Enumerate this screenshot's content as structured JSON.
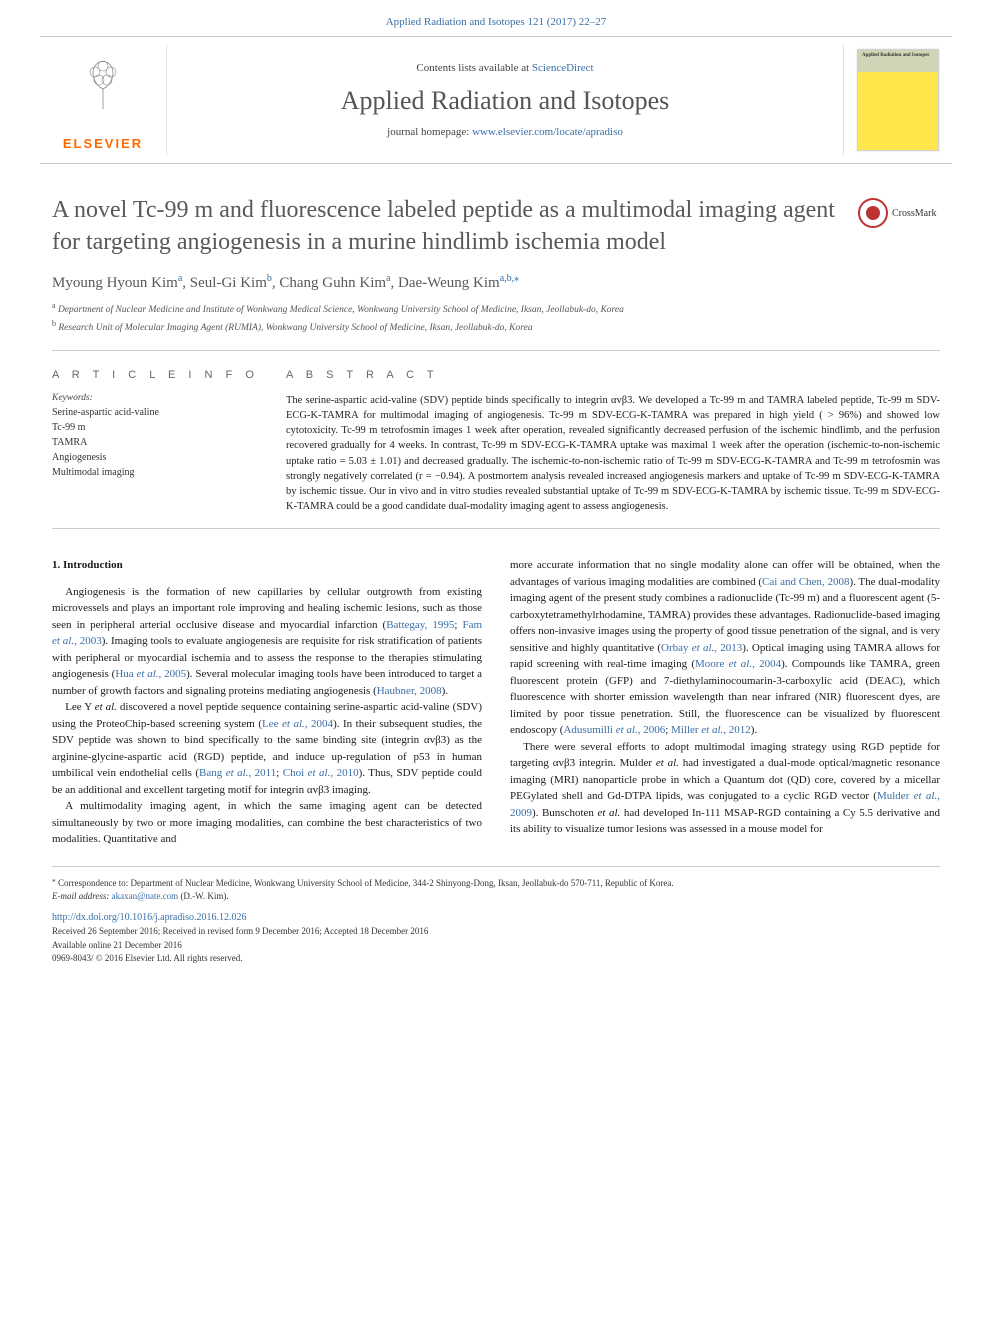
{
  "header": {
    "citation": "Applied Radiation and Isotopes 121 (2017) 22–27",
    "contents_prefix": "Contents lists available at ",
    "contents_link": "ScienceDirect",
    "journal_name": "Applied Radiation and Isotopes",
    "homepage_prefix": "journal homepage: ",
    "homepage_link": "www.elsevier.com/locate/apradiso",
    "publisher": "ELSEVIER",
    "cover_label": "Applied Radiation and Isotopes"
  },
  "crossmark": {
    "label": "CrossMark"
  },
  "article": {
    "title": "A novel Tc-99 m and fluorescence labeled peptide as a multimodal imaging agent for targeting angiogenesis in a murine hindlimb ischemia model",
    "authors_html": "Myoung Hyoun Kim<sup>a</sup>, Seul-Gi Kim<sup>b</sup>, Chang Guhn Kim<sup>a</sup>, Dae-Weung Kim<sup>a,b,</sup>",
    "corr_marker": "⁎",
    "affiliations": {
      "a": "Department of Nuclear Medicine and Institute of Wonkwang Medical Science, Wonkwang University School of Medicine, Iksan, Jeollabuk-do, Korea",
      "b": "Research Unit of Molecular Imaging Agent (RUMIA), Wonkwang University School of Medicine, Iksan, Jeollabuk-do, Korea"
    }
  },
  "info": {
    "section_label": "A R T I C L E  I N F O",
    "keywords_label": "Keywords:",
    "keywords": [
      "Serine-aspartic acid-valine",
      "Tc-99 m",
      "TAMRA",
      "Angiogenesis",
      "Multimodal imaging"
    ]
  },
  "abstract": {
    "section_label": "A B S T R A C T",
    "text": "The serine-aspartic acid-valine (SDV) peptide binds specifically to integrin αvβ3. We developed a Tc-99 m and TAMRA labeled peptide, Tc-99 m SDV-ECG-K-TAMRA for multimodal imaging of angiogenesis. Tc-99 m SDV-ECG-K-TAMRA was prepared in high yield ( > 96%) and showed low cytotoxicity. Tc-99 m tetrofosmin images 1 week after operation, revealed significantly decreased perfusion of the ischemic hindlimb, and the perfusion recovered gradually for 4 weeks. In contrast, Tc-99 m SDV-ECG-K-TAMRA uptake was maximal 1 week after the operation (ischemic-to-non-ischemic uptake ratio = 5.03 ± 1.01) and decreased gradually. The ischemic-to-non-ischemic ratio of Tc-99 m SDV-ECG-K-TAMRA and Tc-99 m tetrofosmin was strongly negatively correlated (r = −0.94). A postmortem analysis revealed increased angiogenesis markers and uptake of Tc-99 m SDV-ECG-K-TAMRA by ischemic tissue. Our in vivo and in vitro studies revealed substantial uptake of Tc-99 m SDV-ECG-K-TAMRA by ischemic tissue. Tc-99 m SDV-ECG-K-TAMRA could be a good candidate dual-modality imaging agent to assess angiogenesis."
  },
  "body": {
    "heading": "1. Introduction",
    "left": [
      "Angiogenesis is the formation of new capillaries by cellular outgrowth from existing microvessels and plays an important role improving and healing ischemic lesions, such as those seen in peripheral arterial occlusive disease and myocardial infarction (Battegay, 1995; Fam et al., 2003). Imaging tools to evaluate angiogenesis are requisite for risk stratification of patients with peripheral or myocardial ischemia and to assess the response to the therapies stimulating angiogenesis (Hua et al., 2005). Several molecular imaging tools have been introduced to target a number of growth factors and signaling proteins mediating angiogenesis (Haubner, 2008).",
      "Lee Y et al. discovered a novel peptide sequence containing serine-aspartic acid-valine (SDV) using the ProteoChip-based screening system (Lee et al., 2004). In their subsequent studies, the SDV peptide was shown to bind specifically to the same binding site (integrin αvβ3) as the arginine-glycine-aspartic acid (RGD) peptide, and induce up-regulation of p53 in human umbilical vein endothelial cells (Bang et al., 2011; Choi et al., 2010). Thus, SDV peptide could be an additional and excellent targeting motif for integrin αvβ3 imaging.",
      "A multimodality imaging agent, in which the same imaging agent can be detected simultaneously by two or more imaging modalities, can combine the best characteristics of two modalities. Quantitative and"
    ],
    "right": [
      "more accurate information that no single modality alone can offer will be obtained, when the advantages of various imaging modalities are combined (Cai and Chen, 2008). The dual-modality imaging agent of the present study combines a radionuclide (Tc-99 m) and a fluorescent agent (5-carboxytetramethylrhodamine, TAMRA) provides these advantages. Radionuclide-based imaging offers non-invasive images using the property of good tissue penetration of the signal, and is very sensitive and highly quantitative (Orbay et al., 2013). Optical imaging using TAMRA allows for rapid screening with real-time imaging (Moore et al., 2004). Compounds like TAMRA, green fluorescent protein (GFP) and 7-diethylaminocoumarin-3-carboxylic acid (DEAC), which fluorescence with shorter emission wavelength than near infrared (NIR) fluorescent dyes, are limited by poor tissue penetration. Still, the fluorescence can be visualized by fluorescent endoscopy (Adusumilli et al., 2006; Miller et al., 2012).",
      "There were several efforts to adopt multimodal imaging strategy using RGD peptide for targeting αvβ3 integrin. Mulder et al. had investigated a dual-mode optical/magnetic resonance imaging (MRI) nanoparticle probe in which a Quantum dot (QD) core, covered by a micellar PEGylated shell and Gd-DTPA lipids, was conjugated to a cyclic RGD vector (Mulder et al., 2009). Bunschoten et al. had developed In-111 MSAP-RGD containing a Cy 5.5 derivative and its ability to visualize tumor lesions was assessed in a mouse model for"
    ]
  },
  "footer": {
    "corr": "Correspondence to: Department of Nuclear Medicine, Wonkwang University School of Medicine, 344-2 Shinyong-Dong, Iksan, Jeollabuk-do 570-711, Republic of Korea.",
    "email_label": "E-mail address:",
    "email": "akaxan@nate.com",
    "email_who": "(D.-W. Kim).",
    "doi": "http://dx.doi.org/10.1016/j.apradiso.2016.12.026",
    "received": "Received 26 September 2016; Received in revised form 9 December 2016; Accepted 18 December 2016",
    "online": "Available online 21 December 2016",
    "issn": "0969-8043/ © 2016 Elsevier Ltd. All rights reserved."
  },
  "colors": {
    "link": "#3a6ea5",
    "heading_gray": "#595959",
    "elsevier_orange": "#ff6a00",
    "cover_yellow": "#ffe64a"
  }
}
